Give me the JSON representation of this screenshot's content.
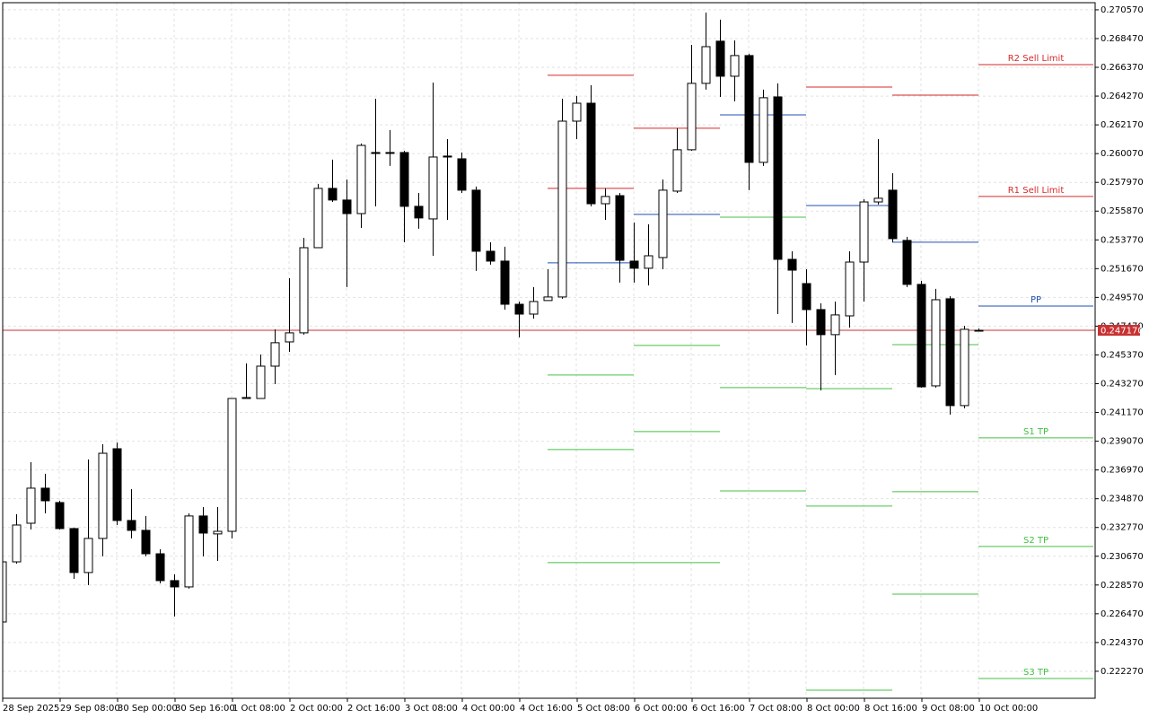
{
  "chart_data": {
    "type": "candlestick",
    "categories": [
      "28 Sep 2025",
      null,
      null,
      null,
      "29 Sep 08:00",
      null,
      null,
      null,
      "30 Sep 00:00",
      null,
      null,
      null,
      "30 Sep 16:00",
      null,
      null,
      null,
      "1 Oct 08:00",
      null,
      null,
      null,
      "2 Oct 00:00",
      null,
      null,
      null,
      "2 Oct 16:00",
      null,
      null,
      null,
      "3 Oct 08:00",
      null,
      null,
      null,
      "4 Oct 00:00",
      null,
      null,
      null,
      "4 Oct 16:00",
      null,
      null,
      null,
      "5 Oct 08:00",
      null,
      null,
      null,
      "6 Oct 00:00",
      null,
      null,
      null,
      "6 Oct 16:00",
      null,
      null,
      null,
      "7 Oct 08:00",
      null,
      null,
      null,
      "8 Oct 00:00",
      null,
      null,
      null,
      "8 Oct 16:00",
      null,
      null,
      null,
      "9 Oct 08:00",
      null,
      null,
      null,
      "10 Oct 00:00"
    ],
    "ohlc": [
      [
        0.22587,
        0.23026,
        0.22587,
        0.23026
      ],
      [
        0.23026,
        0.23374,
        0.23013,
        0.23295
      ],
      [
        0.23308,
        0.23754,
        0.23262,
        0.23564
      ],
      [
        0.23564,
        0.23669,
        0.2338,
        0.23472
      ],
      [
        0.23459,
        0.23472,
        0.23262,
        0.23269
      ],
      [
        0.23269,
        0.23275,
        0.22902,
        0.22948
      ],
      [
        0.22948,
        0.23774,
        0.22856,
        0.23197
      ],
      [
        0.23197,
        0.23885,
        0.23066,
        0.23819
      ],
      [
        0.23852,
        0.23898,
        0.23295,
        0.23328
      ],
      [
        0.23328,
        0.23557,
        0.23197,
        0.23256
      ],
      [
        0.23256,
        0.23361,
        0.23066,
        0.23085
      ],
      [
        0.23085,
        0.23118,
        0.22869,
        0.22889
      ],
      [
        0.22889,
        0.22935,
        0.22627,
        0.22843
      ],
      [
        0.22843,
        0.2338,
        0.2283,
        0.23361
      ],
      [
        0.23361,
        0.23426,
        0.23066,
        0.23236
      ],
      [
        0.2323,
        0.23426,
        0.23033,
        0.23249
      ],
      [
        0.23249,
        0.24219,
        0.23197,
        0.24219
      ],
      [
        0.24219,
        0.24475,
        0.24219,
        0.24226
      ],
      [
        0.24219,
        0.2454,
        0.24219,
        0.24455
      ],
      [
        0.24455,
        0.24724,
        0.24324,
        0.24626
      ],
      [
        0.24632,
        0.25097,
        0.2456,
        0.24698
      ],
      [
        0.24698,
        0.25392,
        0.24685,
        0.2532
      ],
      [
        0.2532,
        0.25786,
        0.2532,
        0.25753
      ],
      [
        0.25753,
        0.25963,
        0.25654,
        0.25668
      ],
      [
        0.25668,
        0.25818,
        0.25032,
        0.25569
      ],
      [
        0.25569,
        0.26081,
        0.25464,
        0.26067
      ],
      [
        0.26015,
        0.26408,
        0.25622,
        0.26008
      ],
      [
        0.26015,
        0.26179,
        0.25917,
        0.26015
      ],
      [
        0.26015,
        0.26028,
        0.2536,
        0.25622
      ],
      [
        0.25622,
        0.2572,
        0.25458,
        0.25537
      ],
      [
        0.2553,
        0.26526,
        0.25261,
        0.25982
      ],
      [
        0.25989,
        0.26113,
        0.25523,
        0.25982
      ],
      [
        0.25969,
        0.26015,
        0.2572,
        0.2574
      ],
      [
        0.2574,
        0.25766,
        0.2515,
        0.25294
      ],
      [
        0.25294,
        0.2536,
        0.25196,
        0.25222
      ],
      [
        0.25222,
        0.25327,
        0.24868,
        0.24907
      ],
      [
        0.24907,
        0.24927,
        0.24665,
        0.24835
      ],
      [
        0.24835,
        0.25032,
        0.24802,
        0.24927
      ],
      [
        0.24934,
        0.25163,
        0.24934,
        0.2496
      ],
      [
        0.2496,
        0.26408,
        0.24947,
        0.26244
      ],
      [
        0.26244,
        0.26428,
        0.26113,
        0.26375
      ],
      [
        0.26375,
        0.26507,
        0.25622,
        0.25641
      ],
      [
        0.25641,
        0.25753,
        0.25523,
        0.25694
      ],
      [
        0.257,
        0.2572,
        0.25065,
        0.25228
      ],
      [
        0.25222,
        0.25504,
        0.25065,
        0.2517
      ],
      [
        0.2517,
        0.25491,
        0.25045,
        0.25261
      ],
      [
        0.25248,
        0.25818,
        0.25163,
        0.2574
      ],
      [
        0.25733,
        0.26192,
        0.2572,
        0.26035
      ],
      [
        0.26035,
        0.26801,
        0.26028,
        0.2652
      ],
      [
        0.2652,
        0.27037,
        0.26474,
        0.26788
      ],
      [
        0.26828,
        0.26985,
        0.26421,
        0.26572
      ],
      [
        0.26572,
        0.26834,
        0.26389,
        0.26723
      ],
      [
        0.26723,
        0.26736,
        0.2574,
        0.25943
      ],
      [
        0.25943,
        0.26474,
        0.25917,
        0.26415
      ],
      [
        0.26421,
        0.2652,
        0.24835,
        0.25235
      ],
      [
        0.25235,
        0.25294,
        0.2477,
        0.25156
      ],
      [
        0.25058,
        0.25163,
        0.24606,
        0.24868
      ],
      [
        0.24868,
        0.24914,
        0.24278,
        0.24685
      ],
      [
        0.24685,
        0.24927,
        0.2439,
        0.24829
      ],
      [
        0.24822,
        0.25294,
        0.24737,
        0.25215
      ],
      [
        0.25215,
        0.25674,
        0.24927,
        0.25654
      ],
      [
        0.25654,
        0.26113,
        0.25635,
        0.25681
      ],
      [
        0.2574,
        0.25864,
        0.2536,
        0.25386
      ],
      [
        0.25373,
        0.25399,
        0.25032,
        0.25052
      ],
      [
        0.25052,
        0.25078,
        0.24298,
        0.24304
      ],
      [
        0.24311,
        0.25019,
        0.24298,
        0.2494
      ],
      [
        0.24947,
        0.24966,
        0.24101,
        0.24167
      ],
      [
        0.24167,
        0.2475,
        0.24147,
        0.24724
      ],
      [
        0.24717,
        0.2473,
        0.24711,
        0.24717
      ]
    ],
    "up_color": "#ffffff",
    "down_color": "#000000",
    "outline_color": "#000000",
    "xlim": [
      0,
      76
    ],
    "ylim": [
      0.2203,
      0.27109
    ],
    "yticks": [
      {
        "value": 0.27057,
        "label": "0.270570"
      },
      {
        "value": 0.26847,
        "label": "0.268470"
      },
      {
        "value": 0.26637,
        "label": "0.266370"
      },
      {
        "value": 0.26427,
        "label": "0.264270"
      },
      {
        "value": 0.26217,
        "label": "0.262170"
      },
      {
        "value": 0.26007,
        "label": "0.260070"
      },
      {
        "value": 0.25797,
        "label": "0.257970"
      },
      {
        "value": 0.25587,
        "label": "0.255870"
      },
      {
        "value": 0.25377,
        "label": "0.253770"
      },
      {
        "value": 0.25167,
        "label": "0.251670"
      },
      {
        "value": 0.24957,
        "label": "0.249570"
      },
      {
        "value": 0.24747,
        "label": "0.247470"
      },
      {
        "value": 0.24537,
        "label": "0.245370"
      },
      {
        "value": 0.24327,
        "label": "0.243270"
      },
      {
        "value": 0.24117,
        "label": "0.241170"
      },
      {
        "value": 0.23907,
        "label": "0.239070"
      },
      {
        "value": 0.23697,
        "label": "0.236970"
      },
      {
        "value": 0.23487,
        "label": "0.234870"
      },
      {
        "value": 0.23277,
        "label": "0.232770"
      },
      {
        "value": 0.23067,
        "label": "0.230670"
      },
      {
        "value": 0.22857,
        "label": "0.228570"
      },
      {
        "value": 0.22647,
        "label": "0.226470"
      },
      {
        "value": 0.22437,
        "label": "0.224370"
      },
      {
        "value": 0.22227,
        "label": "0.222270"
      }
    ],
    "grid": true,
    "current_price": {
      "value": 0.24717,
      "label": "0.247170",
      "color": "#c83232"
    },
    "levels": [
      {
        "value": 0.26579,
        "span": [
          38,
          44
        ],
        "color": "#d42a2a"
      },
      {
        "value": 0.25753,
        "span": [
          38,
          44
        ],
        "color": "#d42a2a"
      },
      {
        "value": 0.25209,
        "span": [
          38,
          44
        ],
        "color": "#2050b0"
      },
      {
        "value": 0.2439,
        "span": [
          38,
          44
        ],
        "color": "#44c044"
      },
      {
        "value": 0.23846,
        "span": [
          38,
          44
        ],
        "color": "#44c044"
      },
      {
        "value": 0.2302,
        "span": [
          38,
          50
        ],
        "color": "#44c044"
      },
      {
        "value": 0.26192,
        "span": [
          44,
          50
        ],
        "color": "#d42a2a"
      },
      {
        "value": 0.25563,
        "span": [
          44,
          50
        ],
        "color": "#2050b0"
      },
      {
        "value": 0.24606,
        "span": [
          44,
          50
        ],
        "color": "#44c044"
      },
      {
        "value": 0.23977,
        "span": [
          44,
          50
        ],
        "color": "#44c044"
      },
      {
        "value": 0.2629,
        "span": [
          50,
          56
        ],
        "color": "#2050b0"
      },
      {
        "value": 0.25543,
        "span": [
          50,
          56
        ],
        "color": "#44c044"
      },
      {
        "value": 0.24298,
        "span": [
          50,
          56
        ],
        "color": "#44c044"
      },
      {
        "value": 0.23544,
        "span": [
          50,
          56
        ],
        "color": "#44c044"
      },
      {
        "value": 0.26493,
        "span": [
          56,
          62
        ],
        "color": "#d42a2a"
      },
      {
        "value": 0.25628,
        "span": [
          56,
          62
        ],
        "color": "#2050b0"
      },
      {
        "value": 0.24291,
        "span": [
          56,
          62
        ],
        "color": "#44c044"
      },
      {
        "value": 0.23433,
        "span": [
          56,
          62
        ],
        "color": "#44c044"
      },
      {
        "value": 0.22089,
        "span": [
          56,
          62
        ],
        "color": "#44c044"
      },
      {
        "value": 0.26434,
        "span": [
          62,
          68
        ],
        "color": "#d42a2a"
      },
      {
        "value": 0.2536,
        "span": [
          62,
          68
        ],
        "color": "#2050b0"
      },
      {
        "value": 0.24612,
        "span": [
          62,
          68
        ],
        "color": "#44c044"
      },
      {
        "value": 0.23538,
        "span": [
          62,
          68
        ],
        "color": "#44c044"
      },
      {
        "value": 0.2279,
        "span": [
          62,
          68
        ],
        "color": "#44c044"
      },
      {
        "value": 0.26657,
        "span": [
          68,
          76
        ],
        "color": "#d42a2a",
        "label": "R2 Sell Limit"
      },
      {
        "value": 0.25694,
        "span": [
          68,
          76
        ],
        "color": "#d42a2a",
        "label": "R1 Sell Limit"
      },
      {
        "value": 0.24894,
        "span": [
          68,
          76
        ],
        "color": "#2050b0",
        "label": "PP"
      },
      {
        "value": 0.23931,
        "span": [
          68,
          76
        ],
        "color": "#44c044",
        "label": "S1 TP"
      },
      {
        "value": 0.23138,
        "span": [
          68,
          76
        ],
        "color": "#44c044",
        "label": "S2 TP"
      },
      {
        "value": 0.22174,
        "span": [
          68,
          76
        ],
        "color": "#44c044",
        "label": "S3 TP"
      }
    ]
  }
}
